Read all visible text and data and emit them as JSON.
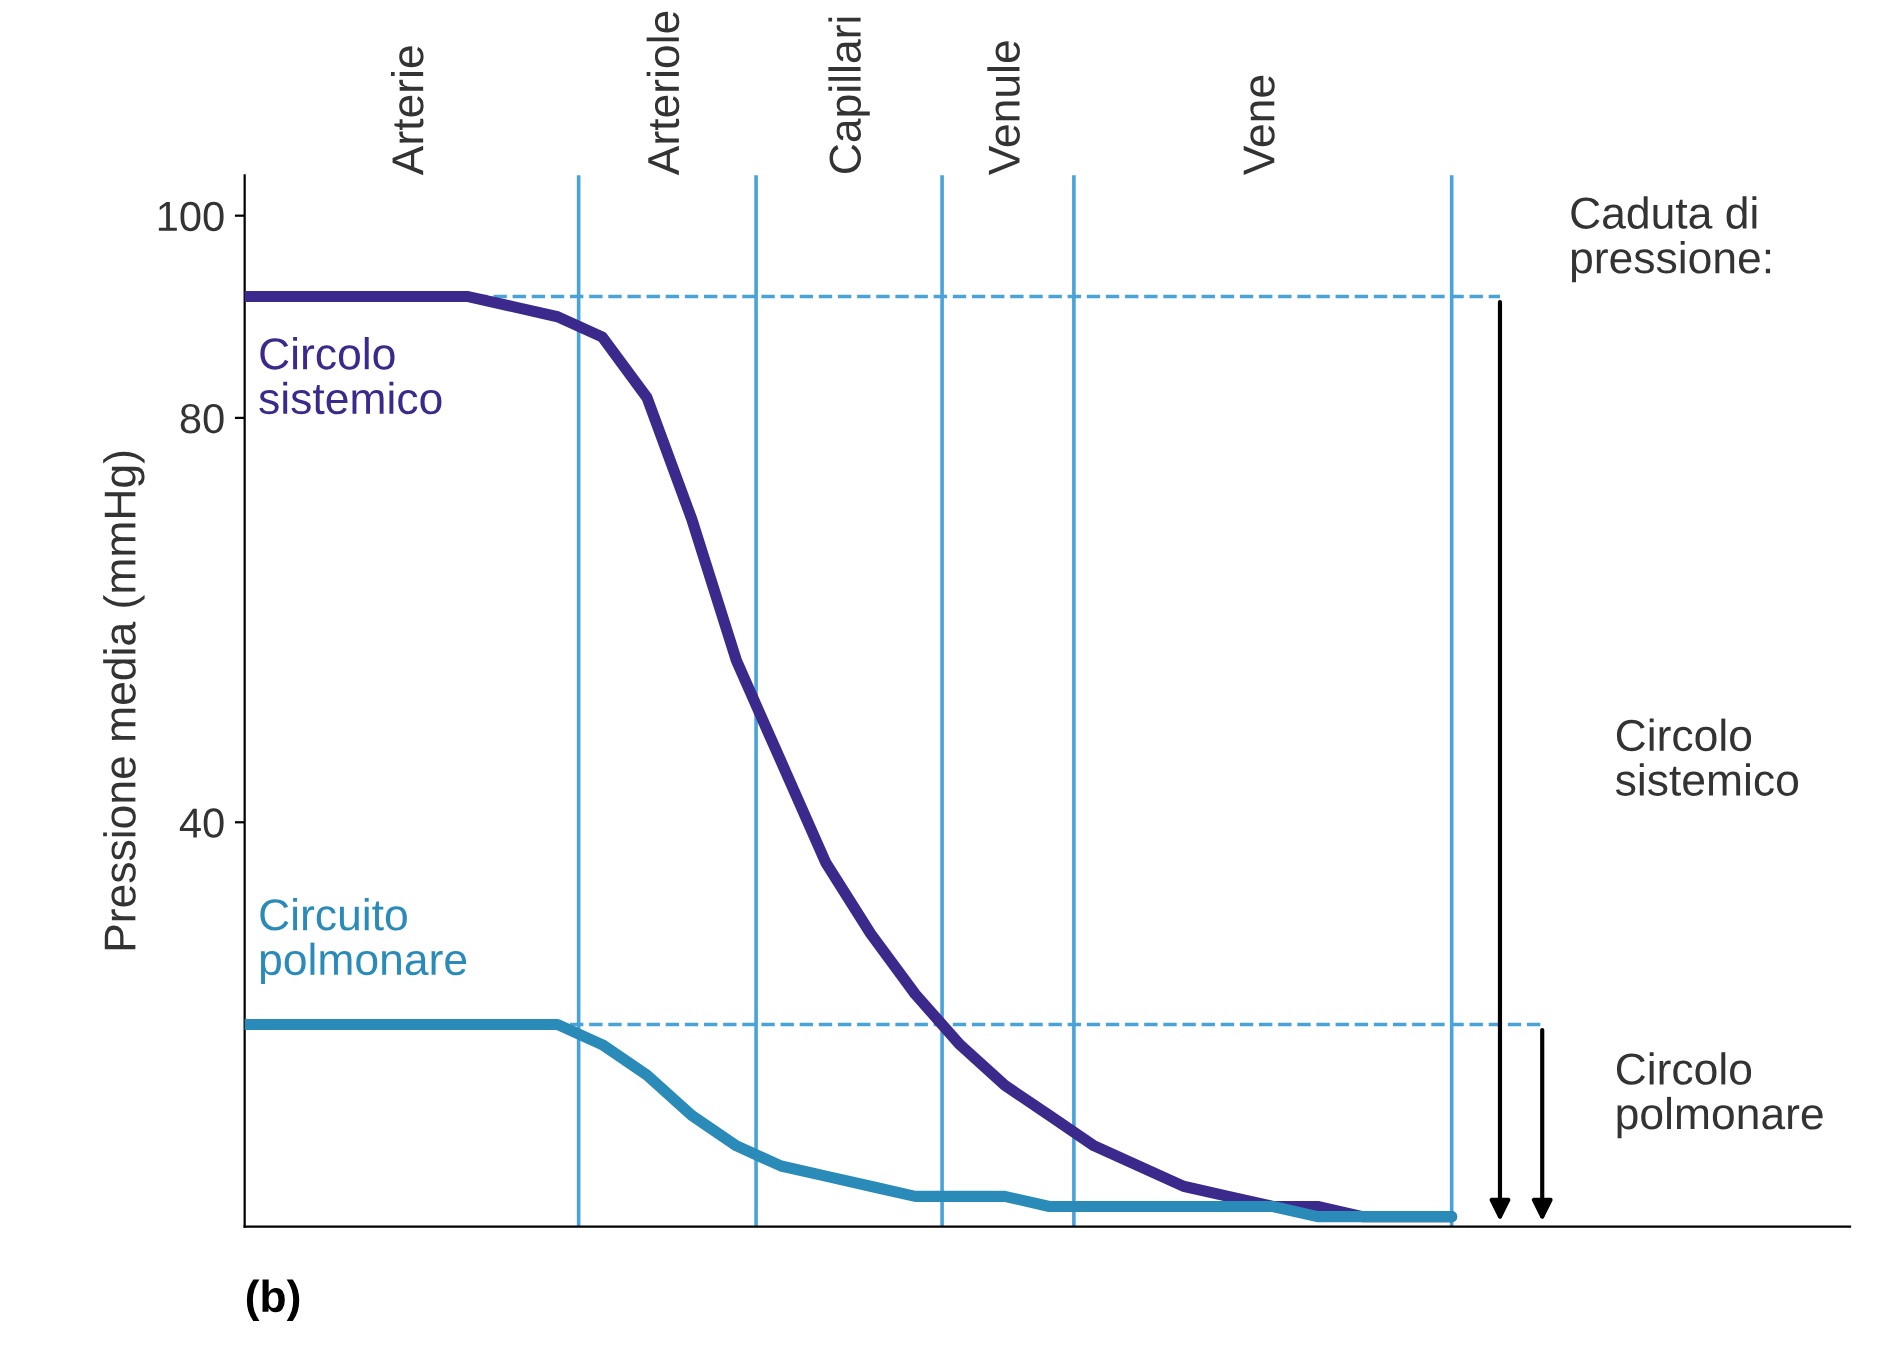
{
  "chart_data": {
    "type": "line",
    "ylabel": "Pressione media (mmHg)",
    "ylim": [
      0,
      104
    ],
    "yticks": [
      40,
      80,
      100
    ],
    "tick_labels": "y",
    "grid": false,
    "legend": false,
    "categories": [
      null,
      null,
      null,
      null,
      null,
      null,
      null,
      null,
      null,
      null,
      null,
      null,
      null,
      null,
      null,
      null,
      null,
      null,
      null,
      null,
      null,
      null,
      null,
      null,
      null,
      null,
      null,
      null
    ],
    "series": [
      {
        "name": "Circolo\nsistemico",
        "color": "#3b2a8c",
        "values": [
          92,
          92,
          92,
          92,
          92,
          92,
          91,
          90,
          88,
          82,
          70,
          56,
          46,
          36,
          29,
          23,
          18,
          14,
          11,
          8,
          6,
          4,
          3,
          2,
          2,
          1,
          1,
          1
        ]
      },
      {
        "name": "Circuito\npolmonare",
        "color": "#2a8ab8",
        "values": [
          20,
          20,
          20,
          20,
          20,
          20,
          20,
          20,
          18,
          15,
          11,
          8,
          6,
          5,
          4,
          3,
          3,
          3,
          2,
          2,
          2,
          2,
          2,
          2,
          1,
          1,
          1,
          1
        ]
      }
    ],
    "ref_lines": [
      {
        "axis": "y",
        "value": 92,
        "color": "#4aa3d8",
        "line_style": "dashed"
      },
      {
        "axis": "y",
        "value": 20,
        "color": "#4aa3d8",
        "line_style": "dashed"
      }
    ],
    "annotations": [
      "Caduta di\npressione:",
      "Circolo\nsistemico",
      "Circolo\npolmonare",
      "(b)",
      "Arterie",
      "Arteriole",
      "Capillari",
      "Venule",
      "Vene"
    ]
  }
}
